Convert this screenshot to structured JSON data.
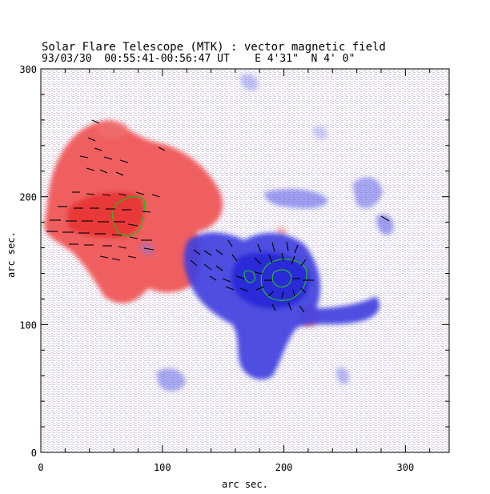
{
  "title_line1": "Solar Flare Telescope (MTK) : vector magnetic field",
  "title_line2": "93/03/30  00:55:41-00:56:47 UT    E 4'31\"  N 4' 0\"",
  "xlabel": "arc sec.",
  "ylabel": "arc sec.",
  "x_ticks": [
    "0",
    "100",
    "200",
    "300"
  ],
  "y_ticks": [
    "0",
    "100",
    "200",
    "300"
  ],
  "x_range": [
    0,
    336
  ],
  "y_range": [
    0,
    300
  ],
  "colors": {
    "positive_polarity": "#ff5555",
    "negative_polarity": "#3535e8",
    "contour": "#22bb22",
    "vectors": "#000000"
  }
}
